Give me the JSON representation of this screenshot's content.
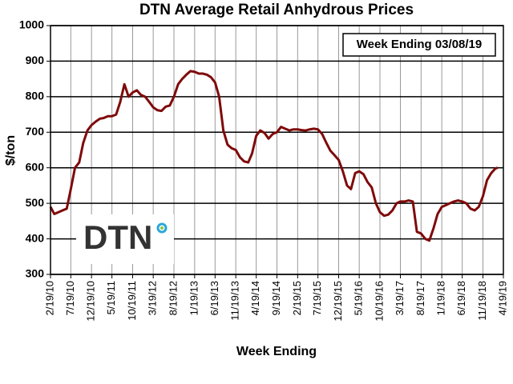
{
  "chart_data": {
    "type": "line",
    "title": "DTN Average Retail Anhydrous Prices",
    "y_label": "$/ton",
    "x_label": "Week Ending",
    "annotation": "Week Ending 03/08/19",
    "logo_text": "DTN",
    "grid": true,
    "ylim": [
      300,
      1000
    ],
    "yticks": [
      300,
      400,
      500,
      600,
      700,
      800,
      900,
      1000
    ],
    "xlim": [
      "2010-02-19",
      "2019-04-19"
    ],
    "xticks": [
      {
        "value": "2010-02-19",
        "label": "2/19/10"
      },
      {
        "value": "2010-07-19",
        "label": "7/19/10"
      },
      {
        "value": "2010-12-19",
        "label": "12/19/10"
      },
      {
        "value": "2011-05-19",
        "label": "5/19/11"
      },
      {
        "value": "2011-10-19",
        "label": "10/19/11"
      },
      {
        "value": "2012-03-19",
        "label": "3/19/12"
      },
      {
        "value": "2012-08-19",
        "label": "8/19/12"
      },
      {
        "value": "2013-01-19",
        "label": "1/19/13"
      },
      {
        "value": "2013-06-19",
        "label": "6/19/13"
      },
      {
        "value": "2013-11-19",
        "label": "11/19/13"
      },
      {
        "value": "2014-04-19",
        "label": "4/19/14"
      },
      {
        "value": "2014-09-19",
        "label": "9/19/14"
      },
      {
        "value": "2015-02-19",
        "label": "2/19/15"
      },
      {
        "value": "2015-07-19",
        "label": "7/19/15"
      },
      {
        "value": "2015-12-19",
        "label": "12/19/15"
      },
      {
        "value": "2016-05-19",
        "label": "5/19/16"
      },
      {
        "value": "2016-10-19",
        "label": "10/19/16"
      },
      {
        "value": "2017-03-19",
        "label": "3/19/17"
      },
      {
        "value": "2017-08-19",
        "label": "8/19/17"
      },
      {
        "value": "2018-01-19",
        "label": "1/19/18"
      },
      {
        "value": "2018-06-19",
        "label": "6/19/18"
      },
      {
        "value": "2018-11-19",
        "label": "11/19/18"
      },
      {
        "value": "2019-04-19",
        "label": "4/19/19"
      }
    ],
    "x": [
      "2010-02-19",
      "2010-03-19",
      "2010-04-19",
      "2010-05-19",
      "2010-06-19",
      "2010-07-19",
      "2010-08-19",
      "2010-09-19",
      "2010-10-19",
      "2010-11-19",
      "2010-12-19",
      "2011-01-19",
      "2011-02-19",
      "2011-03-19",
      "2011-04-19",
      "2011-05-19",
      "2011-06-19",
      "2011-07-19",
      "2011-08-19",
      "2011-09-19",
      "2011-10-19",
      "2011-11-19",
      "2011-12-19",
      "2012-01-19",
      "2012-02-19",
      "2012-03-19",
      "2012-04-19",
      "2012-05-19",
      "2012-06-19",
      "2012-07-19",
      "2012-08-19",
      "2012-09-19",
      "2012-10-19",
      "2012-11-19",
      "2012-12-19",
      "2013-01-19",
      "2013-02-19",
      "2013-03-19",
      "2013-04-19",
      "2013-05-19",
      "2013-06-19",
      "2013-07-19",
      "2013-08-19",
      "2013-09-19",
      "2013-10-19",
      "2013-11-19",
      "2013-12-19",
      "2014-01-19",
      "2014-02-19",
      "2014-03-19",
      "2014-04-19",
      "2014-05-19",
      "2014-06-19",
      "2014-07-19",
      "2014-08-19",
      "2014-09-19",
      "2014-10-19",
      "2014-11-19",
      "2014-12-19",
      "2015-01-19",
      "2015-02-19",
      "2015-03-19",
      "2015-04-19",
      "2015-05-19",
      "2015-06-19",
      "2015-07-19",
      "2015-08-19",
      "2015-09-19",
      "2015-10-19",
      "2015-11-19",
      "2015-12-19",
      "2016-01-19",
      "2016-02-19",
      "2016-03-19",
      "2016-04-19",
      "2016-05-19",
      "2016-06-19",
      "2016-07-19",
      "2016-08-19",
      "2016-09-19",
      "2016-10-19",
      "2016-11-19",
      "2016-12-19",
      "2017-01-19",
      "2017-02-19",
      "2017-03-19",
      "2017-04-19",
      "2017-05-19",
      "2017-06-19",
      "2017-07-19",
      "2017-08-19",
      "2017-09-19",
      "2017-10-19",
      "2017-11-19",
      "2017-12-19",
      "2018-01-19",
      "2018-02-19",
      "2018-03-19",
      "2018-04-19",
      "2018-05-19",
      "2018-06-19",
      "2018-07-19",
      "2018-08-19",
      "2018-09-19",
      "2018-10-19",
      "2018-11-19",
      "2018-12-19",
      "2019-01-19",
      "2019-02-19",
      "2019-03-08"
    ],
    "series": [
      {
        "name": "Anhydrous",
        "color": "#7f0a0a",
        "values": [
          490,
          470,
          475,
          480,
          485,
          540,
          600,
          615,
          670,
          705,
          720,
          730,
          738,
          740,
          745,
          745,
          750,
          785,
          835,
          800,
          812,
          818,
          805,
          800,
          785,
          770,
          762,
          760,
          772,
          775,
          800,
          835,
          850,
          862,
          872,
          870,
          865,
          865,
          862,
          855,
          840,
          800,
          705,
          665,
          655,
          650,
          630,
          618,
          615,
          640,
          690,
          705,
          698,
          682,
          695,
          700,
          715,
          710,
          705,
          708,
          708,
          706,
          705,
          708,
          710,
          708,
          695,
          670,
          648,
          635,
          622,
          590,
          550,
          540,
          585,
          590,
          582,
          560,
          545,
          500,
          475,
          465,
          468,
          480,
          500,
          505,
          505,
          508,
          505,
          420,
          415,
          400,
          395,
          430,
          470,
          490,
          495,
          500,
          505,
          508,
          505,
          500,
          485,
          480,
          490,
          520,
          565,
          585,
          598,
          600
        ]
      }
    ]
  }
}
